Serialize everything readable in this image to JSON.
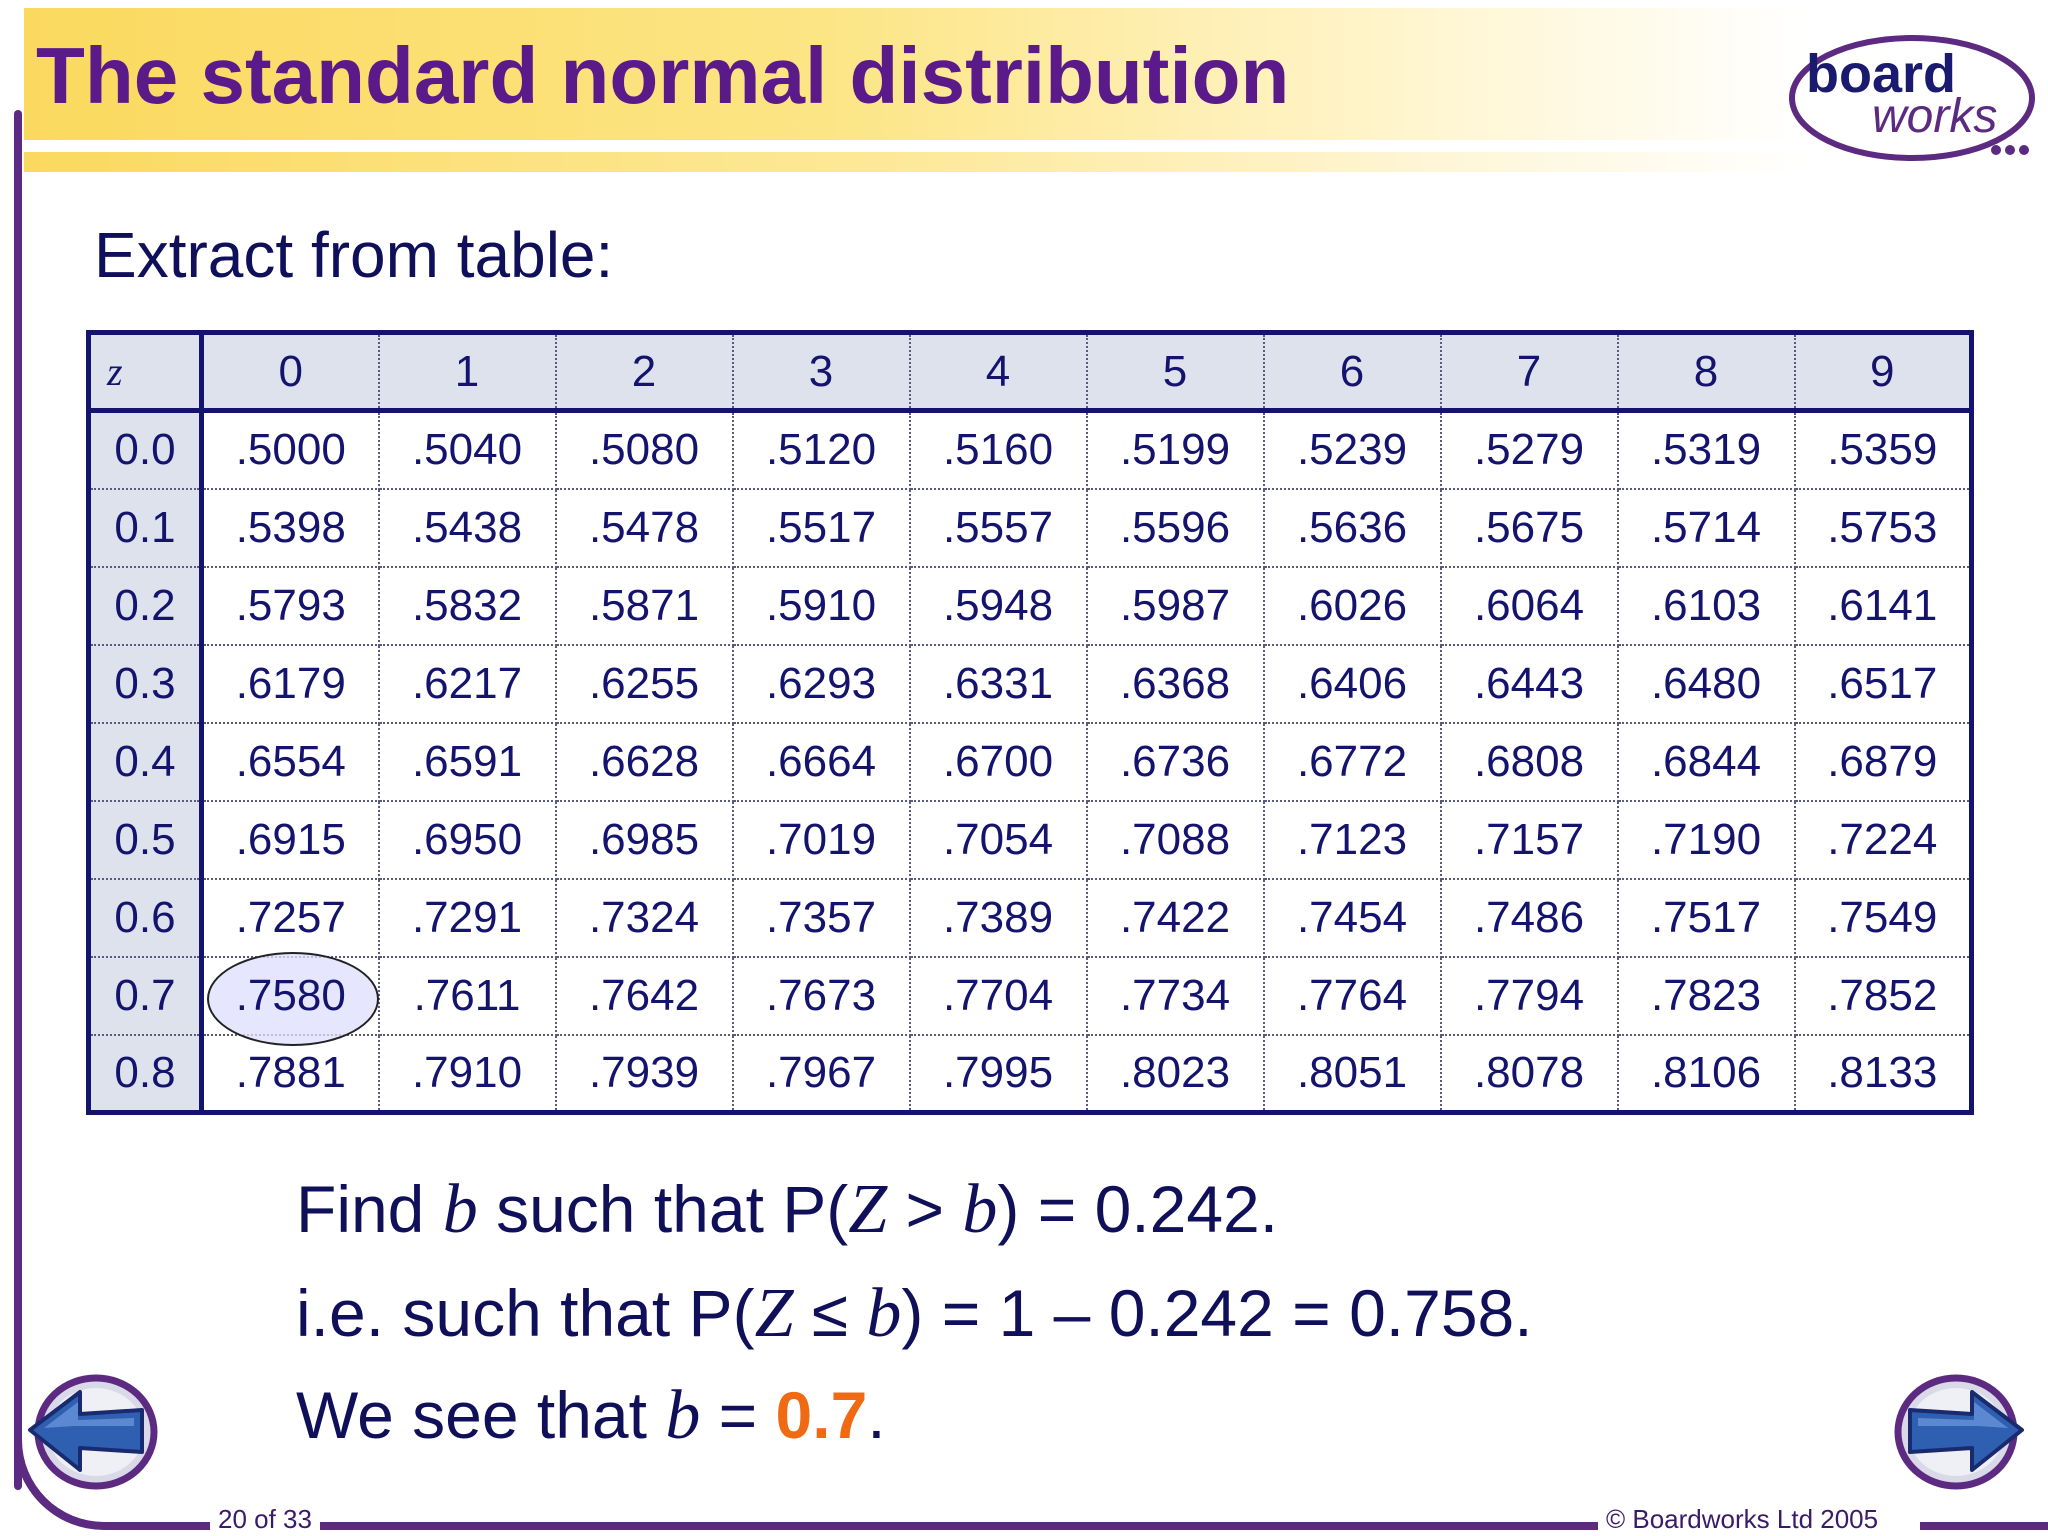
{
  "slide": {
    "title": "The standard normal distribution",
    "subtitle": "Extract from table:",
    "logo": {
      "line1": "board",
      "line2": "works",
      "icon": "boardworks-logo"
    }
  },
  "table": {
    "corner_label": "z",
    "columns": [
      "0",
      "1",
      "2",
      "3",
      "4",
      "5",
      "6",
      "7",
      "8",
      "9"
    ],
    "rows": [
      {
        "z": "0.0",
        "values": [
          ".5000",
          ".5040",
          ".5080",
          ".5120",
          ".5160",
          ".5199",
          ".5239",
          ".5279",
          ".5319",
          ".5359"
        ]
      },
      {
        "z": "0.1",
        "values": [
          ".5398",
          ".5438",
          ".5478",
          ".5517",
          ".5557",
          ".5596",
          ".5636",
          ".5675",
          ".5714",
          ".5753"
        ]
      },
      {
        "z": "0.2",
        "values": [
          ".5793",
          ".5832",
          ".5871",
          ".5910",
          ".5948",
          ".5987",
          ".6026",
          ".6064",
          ".6103",
          ".6141"
        ]
      },
      {
        "z": "0.3",
        "values": [
          ".6179",
          ".6217",
          ".6255",
          ".6293",
          ".6331",
          ".6368",
          ".6406",
          ".6443",
          ".6480",
          ".6517"
        ]
      },
      {
        "z": "0.4",
        "values": [
          ".6554",
          ".6591",
          ".6628",
          ".6664",
          ".6700",
          ".6736",
          ".6772",
          ".6808",
          ".6844",
          ".6879"
        ]
      },
      {
        "z": "0.5",
        "values": [
          ".6915",
          ".6950",
          ".6985",
          ".7019",
          ".7054",
          ".7088",
          ".7123",
          ".7157",
          ".7190",
          ".7224"
        ]
      },
      {
        "z": "0.6",
        "values": [
          ".7257",
          ".7291",
          ".7324",
          ".7357",
          ".7389",
          ".7422",
          ".7454",
          ".7486",
          ".7517",
          ".7549"
        ]
      },
      {
        "z": "0.7",
        "values": [
          ".7580",
          ".7611",
          ".7642",
          ".7673",
          ".7704",
          ".7734",
          ".7764",
          ".7794",
          ".7823",
          ".7852"
        ]
      },
      {
        "z": "0.8",
        "values": [
          ".7881",
          ".7910",
          ".7939",
          ".7967",
          ".7995",
          ".8023",
          ".8051",
          ".8078",
          ".8106",
          ".8133"
        ]
      }
    ],
    "highlight": {
      "row": 7,
      "col": 0
    }
  },
  "text": {
    "line1": {
      "a": "Find ",
      "b": "b",
      "c": " such that P(",
      "d": "Z",
      "e": " > ",
      "f": "b",
      "g": ") = 0.242."
    },
    "line2": {
      "a": "i.e. such that P(",
      "b": "Z",
      "c": " ≤ ",
      "d": "b",
      "e": ") = 1 – 0.242 = 0.758."
    },
    "line3": {
      "a": "We see that ",
      "b": "b",
      "c": " = ",
      "d": "0.7",
      "e": "."
    }
  },
  "nav": {
    "prev_icon": "back-arrow-icon",
    "next_icon": "forward-arrow-icon"
  },
  "footer": {
    "page": "20 of 33",
    "copyright": "© Boardworks Ltd 2005"
  },
  "colors": {
    "title": "#5b1a8a",
    "text": "#10105a",
    "accent": "#ef6a12",
    "frame": "#5c2a80"
  }
}
